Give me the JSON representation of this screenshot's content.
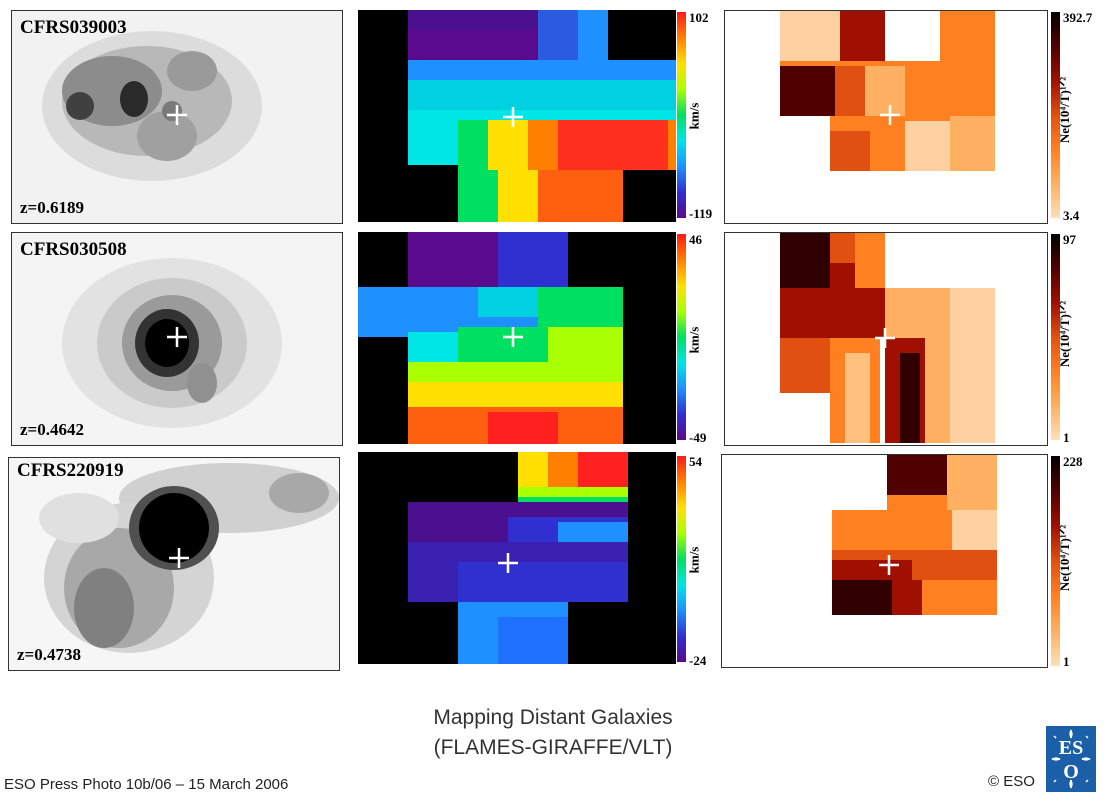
{
  "galaxies": [
    {
      "name": "CFRS039003",
      "redshift": "z=0.6189",
      "velocity_max": "102",
      "velocity_min": "-119",
      "velocity_unit": "km/s",
      "density_max": "392.7",
      "density_min": "3.4",
      "density_unit": "Ne(10⁴/T)¹ᐟ²"
    },
    {
      "name": "CFRS030508",
      "redshift": "z=0.4642",
      "velocity_max": "46",
      "velocity_min": "-49",
      "velocity_unit": "km/s",
      "density_max": "97",
      "density_min": "1",
      "density_unit": "Ne(10⁴/T)¹ᐟ²"
    },
    {
      "name": "CFRS220919",
      "redshift": "z=0.4738",
      "velocity_max": "54",
      "velocity_min": "-24",
      "velocity_unit": "km/s",
      "density_max": "228",
      "density_min": "1",
      "density_unit": "Ne(10⁴/T)¹ᐟ²"
    }
  ],
  "caption": {
    "line1": "Mapping Distant Galaxies",
    "line2": "(FLAMES-GIRAFFE/VLT)"
  },
  "footer": {
    "credit_left": "ESO Press Photo 10b/06 – 15 March 2006",
    "credit_right": "© ESO",
    "logo_text": "ESO"
  },
  "colors": {
    "velocity_scale": [
      "#000000",
      "#5a0a8c",
      "#3030d0",
      "#1e90ff",
      "#00e5e5",
      "#00e060",
      "#aaff00",
      "#ffe000",
      "#ff8000",
      "#ff1a1a"
    ],
    "density_scale": [
      "#ffe0b8",
      "#ffb060",
      "#ff8020",
      "#e05010",
      "#a01000",
      "#500000",
      "#000000"
    ]
  }
}
